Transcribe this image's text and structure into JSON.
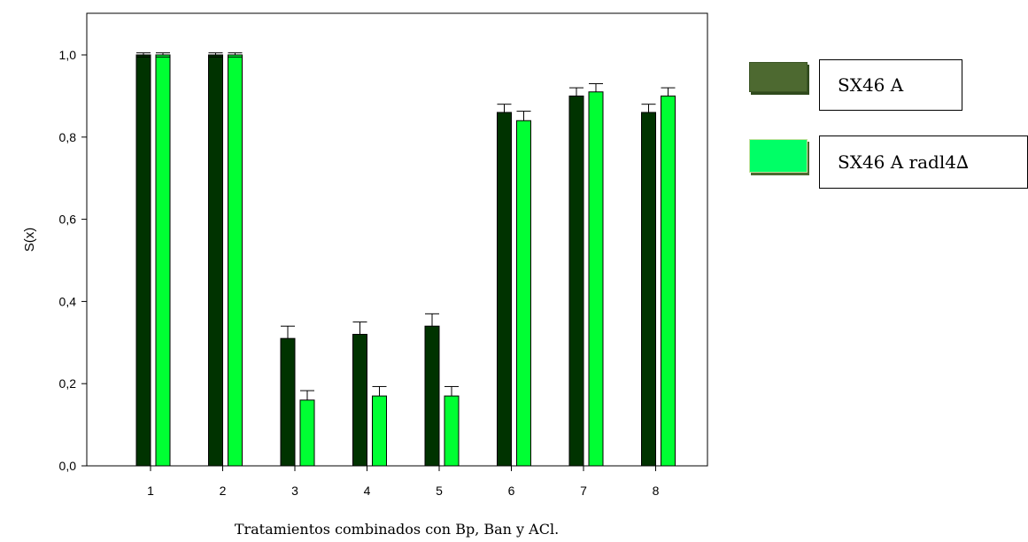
{
  "chart_data": {
    "type": "bar",
    "categories": [
      "1",
      "2",
      "3",
      "4",
      "5",
      "6",
      "7",
      "8"
    ],
    "series": [
      {
        "name": "SX46 A",
        "color": "#003300",
        "values": [
          1.0,
          1.0,
          0.31,
          0.32,
          0.34,
          0.86,
          0.9,
          0.86
        ],
        "errors": [
          0.005,
          0.005,
          0.03,
          0.03,
          0.03,
          0.02,
          0.02,
          0.02
        ]
      },
      {
        "name": "SX46 A radl4∆",
        "color": "#00ff33",
        "values": [
          1.0,
          1.0,
          0.16,
          0.17,
          0.17,
          0.84,
          0.91,
          0.9
        ],
        "errors": [
          0.005,
          0.005,
          0.023,
          0.023,
          0.023,
          0.023,
          0.02,
          0.02
        ]
      }
    ],
    "ylabel": "S(x)",
    "xlabel": "Tratamientos combinados con Bp, Ban y ACl.",
    "ylim": [
      0,
      1.0
    ],
    "yticks": [
      "0,0",
      "0,2",
      "0,4",
      "0,6",
      "0,8",
      "1,0"
    ],
    "ytick_values": [
      0,
      0.2,
      0.4,
      0.6,
      0.8,
      1.0
    ],
    "grid": false,
    "legend_position": "right",
    "legend_swatch_colors": [
      "#4d6930",
      "#00ff66"
    ]
  }
}
